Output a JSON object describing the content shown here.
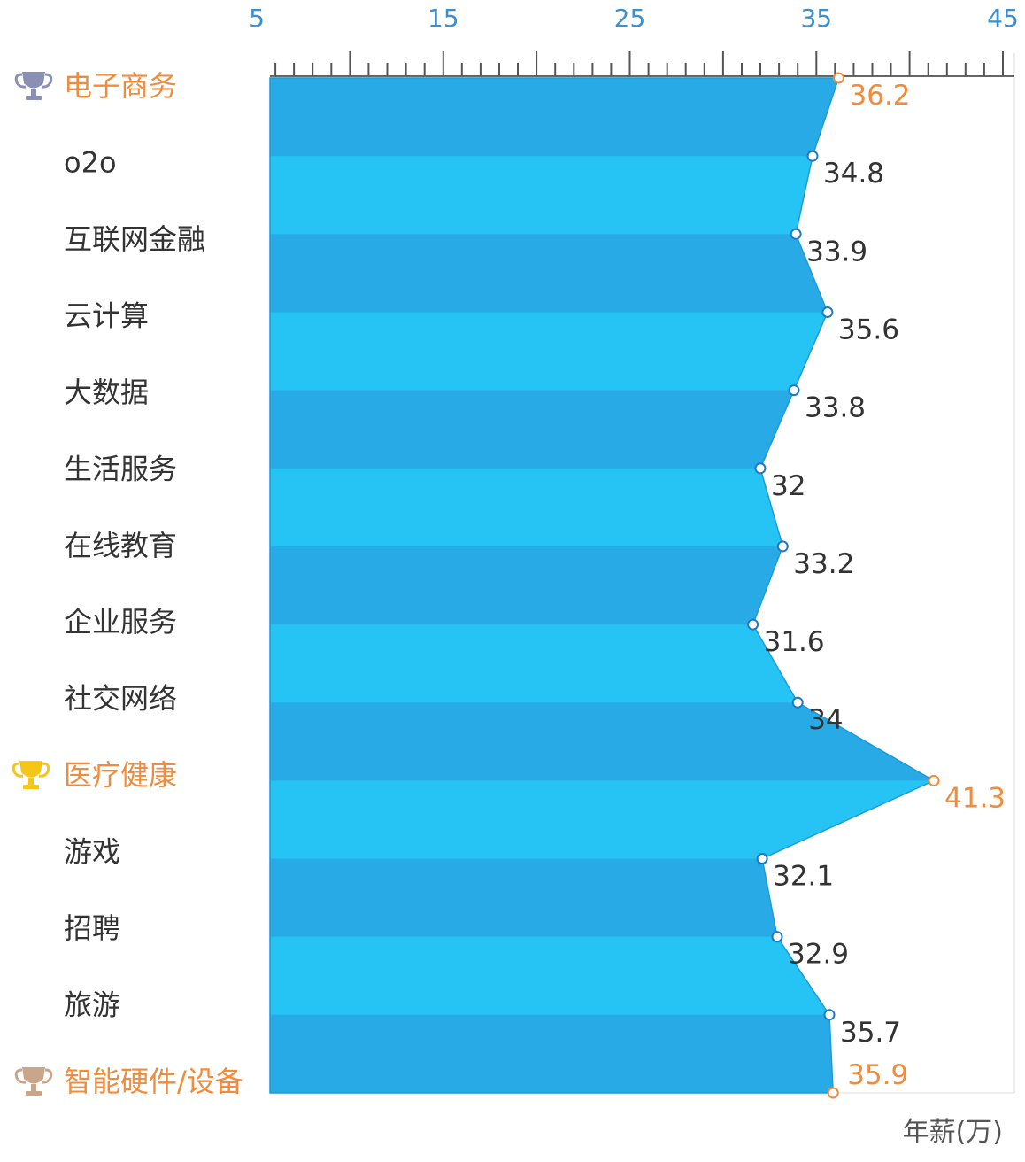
{
  "chart_data": {
    "type": "area",
    "orientation": "horizontal",
    "categories": [
      "电子商务",
      "o2o",
      "互联网金融",
      "云计算",
      "大数据",
      "生活服务",
      "在线教育",
      "企业服务",
      "社交网络",
      "医疗健康",
      "游戏",
      "招聘",
      "旅游",
      "智能硬件/设备"
    ],
    "values": [
      36.2,
      34.8,
      33.9,
      35.6,
      33.8,
      32,
      33.2,
      31.6,
      34,
      41.3,
      32.1,
      32.9,
      35.7,
      35.9
    ],
    "value_labels": [
      "36.2",
      "34.8",
      "33.9",
      "35.6",
      "33.8",
      "32",
      "33.2",
      "31.6",
      "34",
      "41.3",
      "32.1",
      "32.9",
      "35.7",
      "35.9"
    ],
    "highlighted": [
      0,
      9,
      13
    ],
    "trophies": {
      "0": "silver-trophy-icon",
      "9": "gold-trophy-icon",
      "13": "bronze-trophy-icon"
    },
    "xaxis": {
      "position": "top",
      "range": [
        5,
        45
      ],
      "ticks": [
        5,
        15,
        25,
        35,
        45
      ],
      "tick_labels": [
        "5",
        "15",
        "25",
        "35",
        "45"
      ]
    },
    "unit_label": "年薪(万)",
    "title": "",
    "grid": false,
    "legend": "none"
  },
  "colors": {
    "band_dark": "#27aae6",
    "band_light": "#25c4f5",
    "highlight": "#f08c3c",
    "text": "#333333",
    "axis_tick_text": "#3a8fd0",
    "axis_line": "#666666",
    "trophy_silver": "#8a8fb4",
    "trophy_gold": "#f5c518",
    "trophy_bronze": "#c9a58a"
  }
}
